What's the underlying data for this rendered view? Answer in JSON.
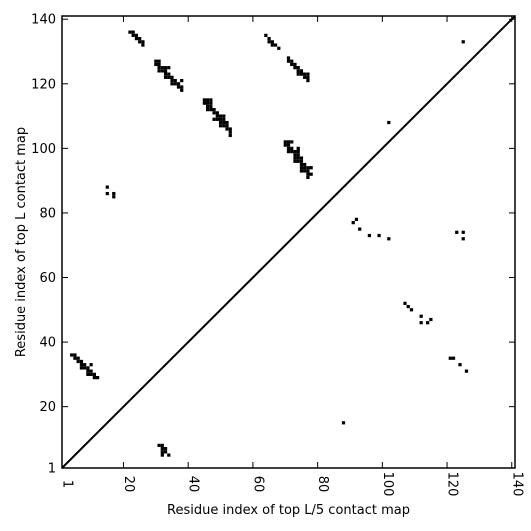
{
  "chart_data": {
    "type": "heatmap",
    "xlabel": "Residue index of top L/5 contact map",
    "ylabel": "Residue index of top L contact map",
    "xlim": [
      1,
      141
    ],
    "ylim": [
      1,
      141
    ],
    "xticks": [
      1,
      20,
      40,
      60,
      80,
      100,
      120,
      140
    ],
    "yticks": [
      1,
      20,
      40,
      60,
      80,
      100,
      120,
      140
    ],
    "tick_labels_x": [
      "1",
      "20",
      "40",
      "60",
      "80",
      "100",
      "120",
      "140"
    ],
    "tick_labels_y": [
      "1",
      "20",
      "40",
      "60",
      "80",
      "100",
      "120",
      "140"
    ],
    "diagonal": true,
    "contact_color": "#000000",
    "upper_triangle_contacts": [
      [
        22,
        136
      ],
      [
        23,
        136
      ],
      [
        23,
        135
      ],
      [
        24,
        135
      ],
      [
        24,
        134
      ],
      [
        25,
        134
      ],
      [
        25,
        133
      ],
      [
        26,
        133
      ],
      [
        26,
        132
      ],
      [
        30,
        127
      ],
      [
        31,
        127
      ],
      [
        30,
        126
      ],
      [
        31,
        126
      ],
      [
        31,
        125
      ],
      [
        32,
        125
      ],
      [
        33,
        125
      ],
      [
        34,
        125
      ],
      [
        31,
        124
      ],
      [
        32,
        124
      ],
      [
        33,
        124
      ],
      [
        33,
        123
      ],
      [
        34,
        123
      ],
      [
        33,
        122
      ],
      [
        34,
        122
      ],
      [
        35,
        122
      ],
      [
        35,
        121
      ],
      [
        36,
        121
      ],
      [
        38,
        121
      ],
      [
        35,
        120
      ],
      [
        36,
        120
      ],
      [
        37,
        120
      ],
      [
        37,
        119
      ],
      [
        38,
        119
      ],
      [
        38,
        118
      ],
      [
        15,
        88
      ],
      [
        15,
        86
      ],
      [
        17,
        86
      ],
      [
        17,
        85
      ],
      [
        45,
        115
      ],
      [
        46,
        115
      ],
      [
        47,
        115
      ],
      [
        45,
        114
      ],
      [
        46,
        114
      ],
      [
        47,
        114
      ],
      [
        46,
        113
      ],
      [
        47,
        113
      ],
      [
        46,
        112
      ],
      [
        47,
        112
      ],
      [
        48,
        112
      ],
      [
        48,
        111
      ],
      [
        49,
        111
      ],
      [
        49,
        110
      ],
      [
        50,
        110
      ],
      [
        51,
        110
      ],
      [
        48,
        109
      ],
      [
        49,
        109
      ],
      [
        50,
        109
      ],
      [
        51,
        109
      ],
      [
        50,
        108
      ],
      [
        51,
        108
      ],
      [
        52,
        108
      ],
      [
        50,
        107
      ],
      [
        51,
        107
      ],
      [
        52,
        107
      ],
      [
        52,
        106
      ],
      [
        53,
        106
      ],
      [
        53,
        105
      ],
      [
        53,
        104
      ],
      [
        64,
        135
      ],
      [
        65,
        134
      ],
      [
        65,
        133
      ],
      [
        66,
        133
      ],
      [
        66,
        132
      ],
      [
        67,
        132
      ],
      [
        68,
        131
      ],
      [
        71,
        128
      ],
      [
        71,
        127
      ],
      [
        72,
        127
      ],
      [
        72,
        126
      ],
      [
        73,
        126
      ],
      [
        73,
        125
      ],
      [
        74,
        125
      ],
      [
        74,
        124
      ],
      [
        75,
        124
      ],
      [
        74,
        123
      ],
      [
        75,
        123
      ],
      [
        76,
        123
      ],
      [
        77,
        123
      ],
      [
        76,
        122
      ],
      [
        77,
        122
      ],
      [
        77,
        121
      ],
      [
        70,
        102
      ],
      [
        71,
        102
      ],
      [
        72,
        102
      ],
      [
        70,
        101
      ],
      [
        71,
        101
      ],
      [
        71,
        100
      ],
      [
        72,
        100
      ],
      [
        71,
        99
      ],
      [
        72,
        99
      ],
      [
        73,
        99
      ],
      [
        74,
        99
      ],
      [
        74,
        100
      ],
      [
        73,
        98
      ],
      [
        74,
        98
      ],
      [
        73,
        97
      ],
      [
        74,
        97
      ],
      [
        75,
        97
      ],
      [
        73,
        96
      ],
      [
        74,
        96
      ],
      [
        75,
        96
      ],
      [
        75,
        95
      ],
      [
        76,
        95
      ],
      [
        75,
        94
      ],
      [
        76,
        94
      ],
      [
        77,
        94
      ],
      [
        78,
        94
      ],
      [
        75,
        93
      ],
      [
        76,
        93
      ],
      [
        77,
        93
      ],
      [
        77,
        92
      ],
      [
        78,
        92
      ],
      [
        77,
        91
      ],
      [
        102,
        108
      ],
      [
        125,
        133
      ]
    ],
    "lower_triangle_contacts": [
      [
        4,
        36
      ],
      [
        5,
        36
      ],
      [
        5,
        35
      ],
      [
        6,
        35
      ],
      [
        6,
        34
      ],
      [
        7,
        34
      ],
      [
        7,
        33
      ],
      [
        8,
        33
      ],
      [
        10,
        33
      ],
      [
        7,
        32
      ],
      [
        8,
        32
      ],
      [
        9,
        32
      ],
      [
        9,
        31
      ],
      [
        10,
        31
      ],
      [
        9,
        30
      ],
      [
        10,
        30
      ],
      [
        11,
        30
      ],
      [
        11,
        29
      ],
      [
        12,
        29
      ],
      [
        31,
        8
      ],
      [
        32,
        8
      ],
      [
        32,
        7
      ],
      [
        33,
        7
      ],
      [
        32,
        6
      ],
      [
        33,
        6
      ],
      [
        32,
        5
      ],
      [
        34,
        5
      ],
      [
        88,
        15
      ],
      [
        91,
        77
      ],
      [
        92,
        78
      ],
      [
        93,
        75
      ],
      [
        96,
        73
      ],
      [
        99,
        73
      ],
      [
        102,
        72
      ],
      [
        123,
        74
      ],
      [
        125,
        74
      ],
      [
        125,
        72
      ],
      [
        107,
        52
      ],
      [
        108,
        51
      ],
      [
        109,
        50
      ],
      [
        112,
        48
      ],
      [
        112,
        46
      ],
      [
        114,
        46
      ],
      [
        115,
        47
      ],
      [
        121,
        35
      ],
      [
        122,
        35
      ],
      [
        124,
        33
      ],
      [
        126,
        31
      ]
    ]
  }
}
